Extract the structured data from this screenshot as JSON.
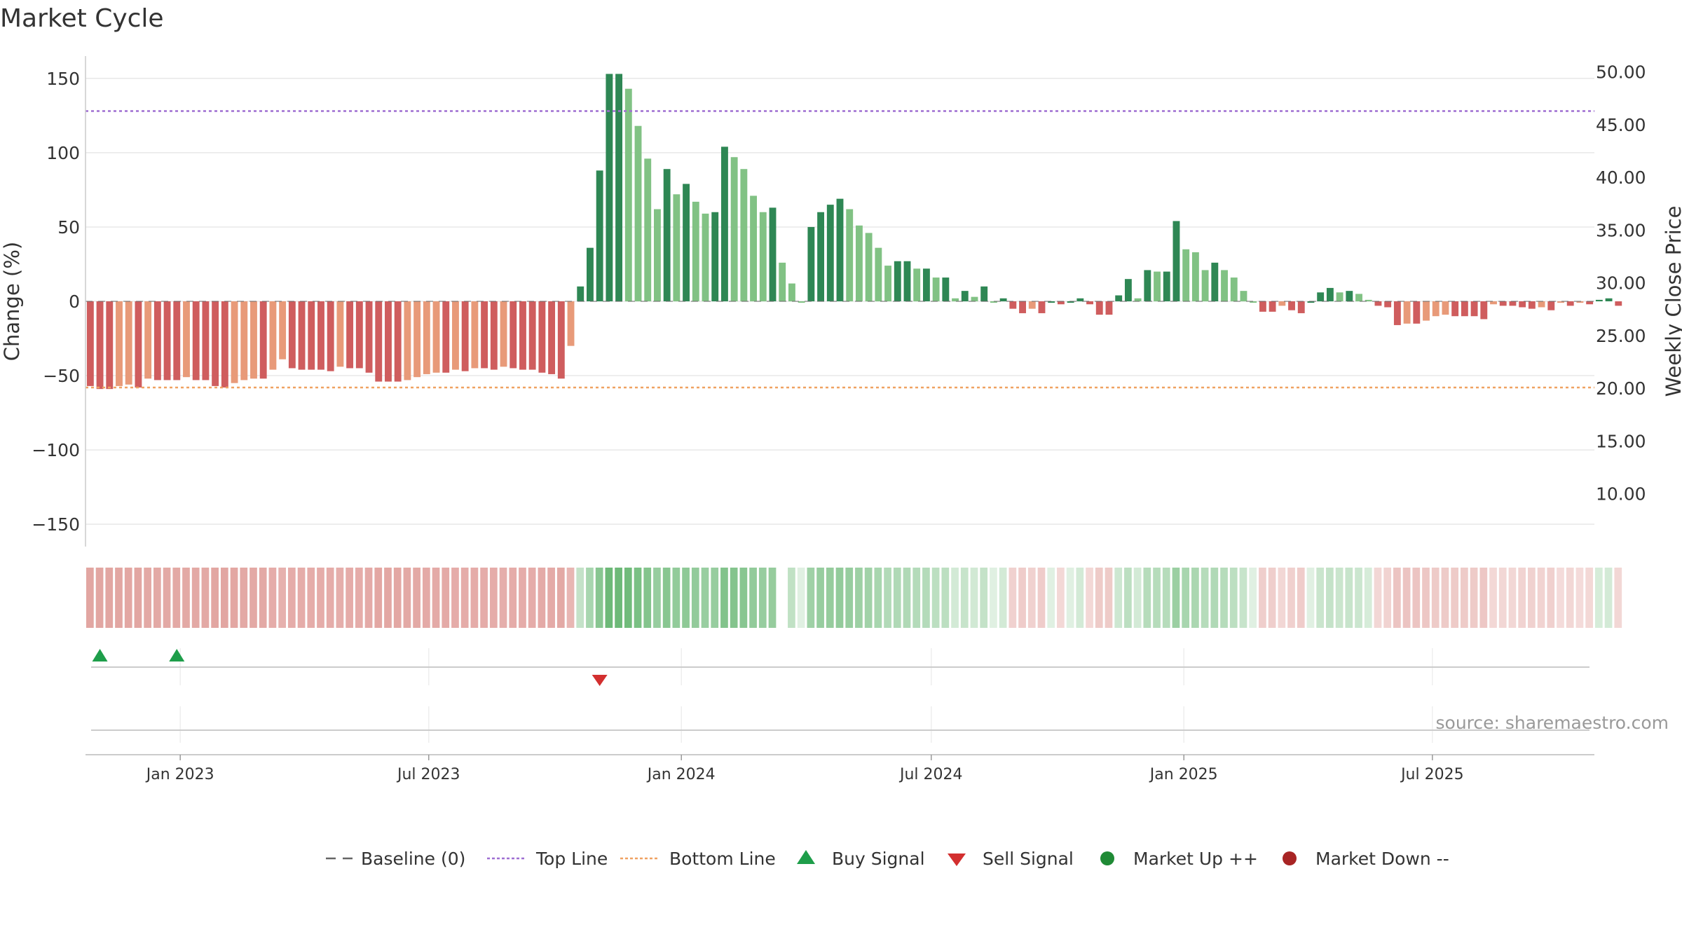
{
  "chart_data": {
    "type": "bar",
    "title": "Market Cycle",
    "ylabel": "Change (%)",
    "y2label": "Weekly Close Price",
    "ylim": [
      -165,
      165
    ],
    "yticks": [
      150,
      100,
      50,
      0,
      -50,
      -100,
      -150
    ],
    "ytick_labels": [
      "150",
      "100",
      "50",
      "0",
      "−50",
      "−100",
      "−150"
    ],
    "y2lim": [
      5.0,
      51.5
    ],
    "y2ticks": [
      50,
      45,
      40,
      35,
      30,
      25,
      20,
      15,
      10
    ],
    "y2tick_labels": [
      "50.00",
      "45.00",
      "40.00",
      "35.00",
      "30.00",
      "25.00",
      "20.00",
      "15.00",
      "10.00"
    ],
    "x_range": [
      "2022-10-24",
      "2025-10-27"
    ],
    "xticks": [
      {
        "date": "2023-01-01",
        "label": "Jan 2023"
      },
      {
        "date": "2023-07-01",
        "label": "Jul 2023"
      },
      {
        "date": "2024-01-01",
        "label": "Jan 2024"
      },
      {
        "date": "2024-07-01",
        "label": "Jul 2024"
      },
      {
        "date": "2025-01-01",
        "label": "Jan 2025"
      },
      {
        "date": "2025-07-01",
        "label": "Jul 2025"
      }
    ],
    "first_week": "2022-10-24",
    "week_step_days": 7,
    "missing_weeks": [
      72
    ],
    "values": [
      -57,
      -59,
      -59,
      -57,
      -56,
      -58,
      -52,
      -53,
      -53,
      -53,
      -51,
      -53,
      -53,
      -57,
      -58,
      -55,
      -53,
      -52,
      -52,
      -46,
      -39,
      -45,
      -46,
      -46,
      -46,
      -47,
      -44,
      -45,
      -45,
      -48,
      -54,
      -54,
      -54,
      -53,
      -51,
      -49,
      -48,
      -48,
      -46,
      -47,
      -45,
      -45,
      -46,
      -44,
      -45,
      -46,
      -46,
      -48,
      -49,
      -52,
      -30,
      10,
      36,
      88,
      153,
      153,
      143,
      118,
      96,
      62,
      89,
      72,
      79,
      67,
      59,
      60,
      104,
      97,
      89,
      71,
      60,
      63,
      26,
      12,
      0,
      50,
      60,
      65,
      69,
      62,
      51,
      46,
      36,
      24,
      27,
      27,
      22,
      22,
      16,
      16,
      2,
      7,
      3,
      10,
      0,
      2,
      -5,
      -8,
      -5,
      -8,
      0,
      -2,
      0,
      2,
      -2,
      -9,
      -9,
      4,
      15,
      2,
      21,
      20,
      20,
      54,
      35,
      33,
      21,
      26,
      21,
      16,
      7,
      0,
      -7,
      -7,
      -3,
      -6,
      -8,
      0,
      6,
      9,
      6,
      7,
      5,
      1,
      -3,
      -4,
      -16,
      -15,
      -15,
      -13,
      -10,
      -9,
      -10,
      -10,
      -10,
      -12,
      -2,
      -3,
      -3,
      -4,
      -5,
      -4,
      -6,
      -1,
      -3,
      -1,
      -2,
      1,
      2,
      -3
    ],
    "weekly_close_price": [],
    "reference_lines": [
      {
        "name": "Baseline (0)",
        "y": 0,
        "axis": "left",
        "color": "#666666",
        "style": "dashed"
      },
      {
        "name": "Top Line",
        "y": 128,
        "axis": "left",
        "color": "#9f6fd2",
        "style": "dotted"
      },
      {
        "name": "Bottom Line",
        "y": -58,
        "axis": "left",
        "color": "#f0a262",
        "style": "dotted"
      }
    ],
    "signals": [
      {
        "type": "Buy Signal",
        "date": "2022-10-31"
      },
      {
        "type": "Buy Signal",
        "date": "2022-12-26"
      },
      {
        "type": "Sell Signal",
        "date": "2023-10-30"
      }
    ],
    "legend": {
      "position": "bottom",
      "items": [
        {
          "label": "Baseline (0)",
          "marker": "dash",
          "color": "#666666"
        },
        {
          "label": "Top Line",
          "marker": "dotted-line",
          "color": "#9f6fd2"
        },
        {
          "label": "Bottom Line",
          "marker": "dotted-line",
          "color": "#f0a262"
        },
        {
          "label": "Buy Signal",
          "marker": "triangle-up",
          "color": "#1e9e4a"
        },
        {
          "label": "Sell Signal",
          "marker": "triangle-down",
          "color": "#d32f2f"
        },
        {
          "label": "Market Up ++",
          "marker": "circle",
          "color": "#1f8a35"
        },
        {
          "label": "Market Down --",
          "marker": "circle",
          "color": "#a82424"
        }
      ]
    },
    "grid": true,
    "source": "source: sharemaestro.com",
    "colors": {
      "up_strong": "#2e8754",
      "up_light": "#81c284",
      "down_strong": "#cf5d5e",
      "down_light": "#e89a79",
      "band_up": "#3fa34d",
      "band_down": "#c9564f"
    }
  }
}
